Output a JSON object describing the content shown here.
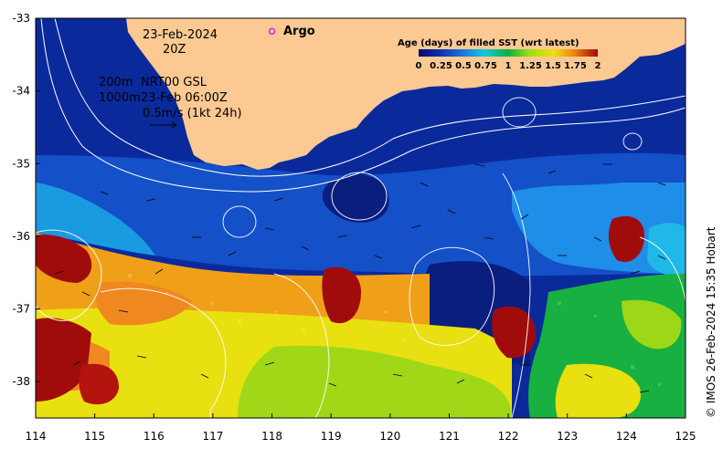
{
  "map": {
    "date": "23-Feb-2024",
    "hour": "20Z",
    "isobath_shallow": "200m",
    "isobath_deep": "1000m",
    "product": "NRT00 GSL",
    "timestamp": "23-Feb 06:00Z",
    "current_scale": "0.5m/s (1kt 24h)",
    "argo_label": "Argo",
    "credit": "© IMOS 26-Feb-2024 15:35 Hobart",
    "lon_range": [
      114,
      125
    ],
    "lat_range": [
      -38.5,
      -33
    ],
    "x_ticks": [
      "114",
      "115",
      "116",
      "117",
      "118",
      "119",
      "120",
      "121",
      "122",
      "123",
      "124",
      "125"
    ],
    "y_ticks": [
      "-33",
      "-34",
      "-35",
      "-36",
      "-37",
      "-38"
    ],
    "argo_float": {
      "lon": 118.0,
      "lat": -33.18
    },
    "colors": {
      "land": "#fcc993",
      "coast_line": "#ffffff",
      "argo": "#e020e0"
    }
  },
  "colorbar": {
    "title": "Age (days) of filled SST (wrt latest)",
    "tick_labels": [
      "0",
      "0.25",
      "0.5",
      "0.75",
      "1",
      "1.25",
      "1.5",
      "1.75",
      "2"
    ],
    "range": [
      0,
      2
    ],
    "stops": [
      "#08086e",
      "#0a2fb0",
      "#1e78e0",
      "#14c8e0",
      "#10b040",
      "#9ce010",
      "#f0e010",
      "#f08010",
      "#a00a0a"
    ]
  }
}
